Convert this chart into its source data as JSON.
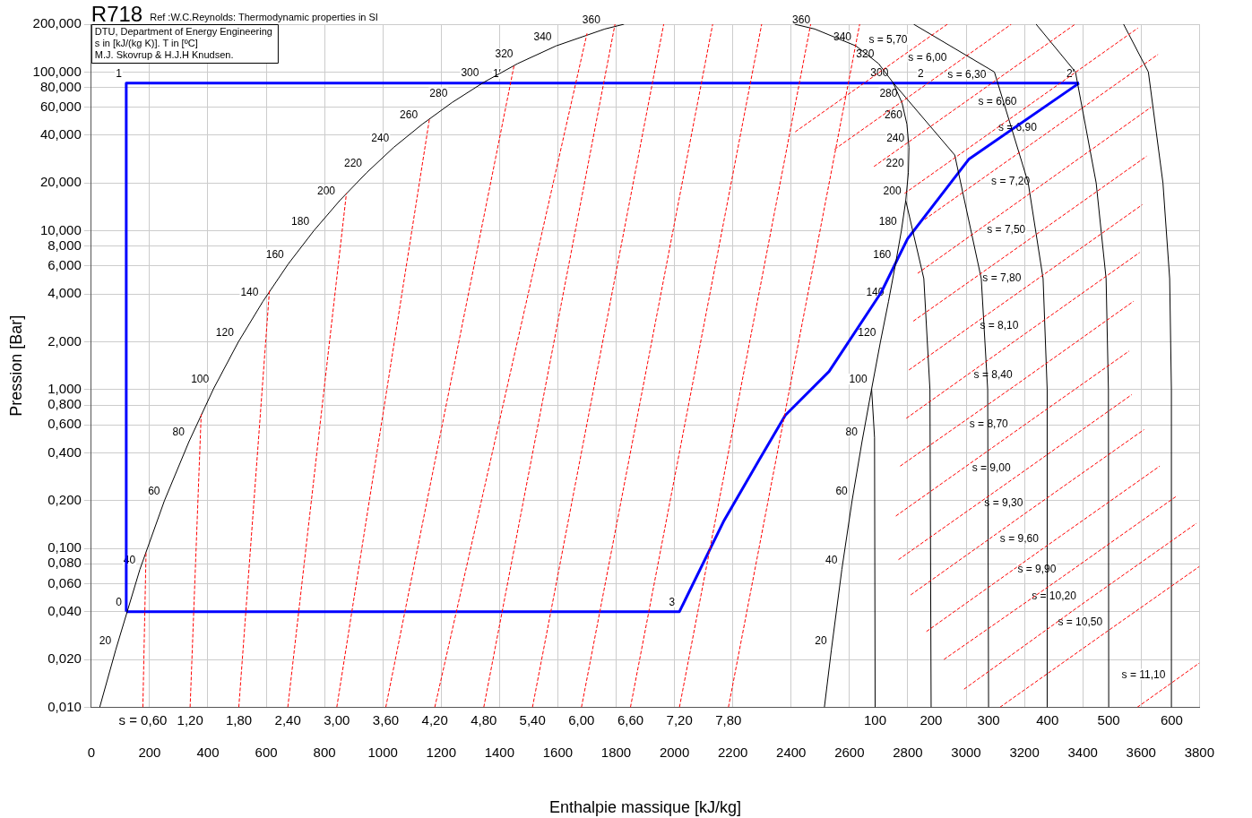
{
  "chart_data": {
    "type": "line",
    "title": "R718",
    "subtitle": "Ref :W.C.Reynolds: Thermodynamic properties in SI",
    "xlabel": "Enthalpie massique [kJ/kg]",
    "ylabel": "Pression [Bar]",
    "xlim": [
      0,
      3800
    ],
    "xticks": [
      0,
      200,
      400,
      600,
      800,
      1000,
      1200,
      1400,
      1600,
      1800,
      2000,
      2200,
      2400,
      2600,
      2800,
      3000,
      3200,
      3400,
      3600,
      3800
    ],
    "ylim": [
      0.01,
      200
    ],
    "log": true,
    "yticks": [
      {
        "value": 0.01,
        "label": "0,010"
      },
      {
        "value": 0.02,
        "label": "0,020"
      },
      {
        "value": 0.04,
        "label": "0,040"
      },
      {
        "value": 0.06,
        "label": "0,060"
      },
      {
        "value": 0.08,
        "label": "0,080"
      },
      {
        "value": 0.1,
        "label": "0,100"
      },
      {
        "value": 0.2,
        "label": "0,200"
      },
      {
        "value": 0.4,
        "label": "0,400"
      },
      {
        "value": 0.6,
        "label": "0,600"
      },
      {
        "value": 0.8,
        "label": "0,800"
      },
      {
        "value": 1,
        "label": "1,000"
      },
      {
        "value": 2,
        "label": "2,000"
      },
      {
        "value": 4,
        "label": "4,000"
      },
      {
        "value": 6,
        "label": "6,000"
      },
      {
        "value": 8,
        "label": "8,000"
      },
      {
        "value": 10,
        "label": "10,000"
      },
      {
        "value": 20,
        "label": "20,000"
      },
      {
        "value": 40,
        "label": "40,000"
      },
      {
        "value": 60,
        "label": "60,000"
      },
      {
        "value": 80,
        "label": "80,000"
      },
      {
        "value": 100,
        "label": "100,000"
      },
      {
        "value": 200,
        "label": "200,000"
      }
    ],
    "grid": true,
    "legend": false,
    "series": [
      {
        "color": "#ff0000",
        "line_style": "dashed",
        "x": [
          177,
          188
        ],
        "values": [
          0.01,
          0.096
        ]
      },
      {
        "color": "#ff0000",
        "line_style": "dashed",
        "x": [
          339,
          377
        ],
        "values": [
          0.01,
          0.7
        ]
      },
      {
        "color": "#ff0000",
        "line_style": "dashed",
        "x": [
          506,
          611
        ],
        "values": [
          0.01,
          4.2
        ]
      },
      {
        "color": "#ff0000",
        "line_style": "dashed",
        "x": [
          674,
          875
        ],
        "values": [
          0.01,
          17.2
        ]
      },
      {
        "color": "#ff0000",
        "line_style": "dashed",
        "x": [
          842,
          1160
        ],
        "values": [
          0.01,
          51
        ]
      },
      {
        "color": "#ff0000",
        "line_style": "dashed",
        "x": [
          1010,
          1450
        ],
        "values": [
          0.01,
          110
        ]
      },
      {
        "color": "#ff0000",
        "line_style": "dashed",
        "x": [
          1178,
          1700
        ],
        "values": [
          0.01,
          175
        ]
      },
      {
        "color": "#ff0000",
        "line_style": "dashed",
        "x": [
          1346,
          1796
        ],
        "values": [
          0.01,
          200
        ]
      },
      {
        "color": "#ff0000",
        "line_style": "dashed",
        "x": [
          1513,
          1963
        ],
        "values": [
          0.01,
          200
        ]
      },
      {
        "color": "#ff0000",
        "line_style": "dashed",
        "x": [
          1681,
          2131
        ],
        "values": [
          0.01,
          200
        ]
      },
      {
        "color": "#ff0000",
        "line_style": "dashed",
        "x": [
          1849,
          2299
        ],
        "values": [
          0.01,
          200
        ]
      },
      {
        "color": "#ff0000",
        "line_style": "dashed",
        "x": [
          2017,
          2467
        ],
        "values": [
          0.01,
          200
        ]
      },
      {
        "color": "#ff0000",
        "line_style": "dashed",
        "x": [
          2185,
          2635
        ],
        "values": [
          0.01,
          200
        ]
      },
      {
        "color": "#ff0000",
        "line_style": "dashed",
        "x": [
          2414,
          2814,
          2936
        ],
        "values": [
          42,
          139,
          200
        ]
      },
      {
        "color": "#ff0000",
        "line_style": "dashed",
        "x": [
          2549,
          2949,
          3155
        ],
        "values": [
          32.6,
          108,
          200
        ]
      },
      {
        "color": "#ff0000",
        "line_style": "dashed",
        "x": [
          2684,
          3084,
          3374
        ],
        "values": [
          25.4,
          84,
          200
        ]
      },
      {
        "color": "#ff0000",
        "line_style": "dashed",
        "x": [
          2789,
          3189,
          3589
        ],
        "values": [
          17.2,
          57,
          189
        ]
      },
      {
        "color": "#ff0000",
        "line_style": "dashed",
        "x": [
          2858,
          3258,
          3658
        ],
        "values": [
          11.8,
          39,
          129
        ]
      },
      {
        "color": "#ff0000",
        "line_style": "dashed",
        "x": [
          2834,
          3234,
          3634
        ],
        "values": [
          5.4,
          18,
          60
        ]
      },
      {
        "color": "#ff0000",
        "line_style": "dashed",
        "x": [
          2819,
          3219,
          3619
        ],
        "values": [
          2.7,
          8.9,
          29.5
        ]
      },
      {
        "color": "#ff0000",
        "line_style": "dashed",
        "x": [
          2804,
          3204,
          3604
        ],
        "values": [
          1.33,
          4.4,
          14.6
        ]
      },
      {
        "color": "#ff0000",
        "line_style": "dashed",
        "x": [
          2795,
          3195,
          3595
        ],
        "values": [
          0.66,
          2.2,
          7.3
        ]
      },
      {
        "color": "#ff0000",
        "line_style": "dashed",
        "x": [
          2774,
          3174,
          3574
        ],
        "values": [
          0.33,
          1.08,
          3.6
        ]
      },
      {
        "color": "#ff0000",
        "line_style": "dashed",
        "x": [
          2759,
          3159,
          3559
        ],
        "values": [
          0.16,
          0.53,
          1.75
        ]
      },
      {
        "color": "#ff0000",
        "line_style": "dashed",
        "x": [
          2768,
          3168,
          3568
        ],
        "values": [
          0.085,
          0.28,
          0.93
        ]
      },
      {
        "color": "#ff0000",
        "line_style": "dashed",
        "x": [
          2810,
          3210,
          3610
        ],
        "values": [
          0.051,
          0.17,
          0.56
        ]
      },
      {
        "color": "#ff0000",
        "line_style": "dashed",
        "x": [
          2864,
          3264,
          3664
        ],
        "values": [
          0.03,
          0.1,
          0.33
        ]
      },
      {
        "color": "#ff0000",
        "line_style": "dashed",
        "x": [
          2924,
          3324,
          3724
        ],
        "values": [
          0.02,
          0.065,
          0.215
        ]
      },
      {
        "color": "#ff0000",
        "line_style": "dashed",
        "x": [
          2993,
          3393,
          3790
        ],
        "values": [
          0.013,
          0.044,
          0.144
        ]
      },
      {
        "color": "#ff0000",
        "line_style": "dashed",
        "x": [
          3116,
          3483,
          3800
        ],
        "values": [
          0.01,
          0.03,
          0.077
        ]
      },
      {
        "color": "#ff0000",
        "line_style": "dashed",
        "x": [
          3587,
          3699,
          3800
        ],
        "values": [
          0.01,
          0.014,
          0.019
        ]
      },
      {
        "color": "#000000",
        "x": [
          29,
          84,
          167,
          251,
          335,
          419,
          504,
          589,
          676,
          763,
          852,
          944,
          1037,
          1135,
          1237,
          1345,
          1462,
          1594,
          1761,
          1827
        ],
        "values": [
          0.01,
          0.023,
          0.074,
          0.2,
          0.47,
          1.01,
          1.99,
          3.6,
          6.2,
          10,
          15.5,
          23.2,
          33.5,
          46.9,
          64.2,
          85.9,
          112.9,
          146,
          186.5,
          200
        ]
      },
      {
        "color": "#000000",
        "x": [
          2514,
          2538,
          2574,
          2609,
          2643,
          2676,
          2706,
          2734,
          2758,
          2778,
          2793,
          2802,
          2804,
          2797,
          2780,
          2749,
          2700,
          2622,
          2481,
          2412
        ],
        "values": [
          0.01,
          0.023,
          0.074,
          0.2,
          0.47,
          1.01,
          1.99,
          3.6,
          6.2,
          10,
          15.5,
          23.2,
          33.5,
          46.9,
          64.2,
          85.9,
          112.9,
          146,
          186.5,
          200
        ]
      },
      {
        "color": "#000000",
        "x": [
          2688,
          2686,
          2676
        ],
        "values": [
          0.01,
          0.5,
          1.01
        ]
      },
      {
        "color": "#000000",
        "x": [
          2880,
          2876,
          2855,
          2793
        ],
        "values": [
          0.01,
          1,
          5,
          15.5
        ]
      },
      {
        "color": "#000000",
        "x": [
          3077,
          3074,
          3052,
          2961,
          2749
        ],
        "values": [
          0.01,
          1,
          5,
          30,
          85.9
        ]
      },
      {
        "color": "#000000",
        "x": [
          3279,
          3278,
          3264,
          3213,
          3097,
          2820
        ],
        "values": [
          0.01,
          1,
          5,
          20,
          100,
          200
        ]
      },
      {
        "color": "#000000",
        "x": [
          3489,
          3488,
          3480,
          3446,
          3375,
          3240
        ],
        "values": [
          0.01,
          1,
          5,
          20,
          100,
          200
        ]
      },
      {
        "color": "#000000",
        "x": [
          3705,
          3704,
          3698,
          3675,
          3625,
          3540
        ],
        "values": [
          0.01,
          1,
          5,
          20,
          100,
          200
        ]
      },
      {
        "color": "#0000ff",
        "x": [
          120,
          120,
          3387
        ],
        "values": [
          0.04,
          85,
          85
        ]
      },
      {
        "color": "#0000ff",
        "x": [
          3387,
          3009,
          2799,
          2709,
          2530,
          2380,
          2290,
          2170,
          2017,
          120
        ],
        "values": [
          85,
          28.2,
          8.9,
          4.1,
          1.3,
          0.69,
          0.36,
          0.15,
          0.04,
          0.04
        ]
      }
    ],
    "annotations": [
      "DTU, Department of Energy Engineering",
      "s in [kJ/(kg K)]. T in [ºC]",
      "M.J. Skovrup & H.J.H Knudsen.",
      {
        "text": "1",
        "x": 120,
        "y": 85
      },
      {
        "text": "1′",
        "x": 1420,
        "y": 85
      },
      {
        "text": "2",
        "x": 2870,
        "y": 85
      },
      {
        "text": "2′",
        "x": 3387,
        "y": 85
      },
      {
        "text": "0",
        "x": 120,
        "y": 0.04
      },
      {
        "text": "3",
        "x": 2017,
        "y": 0.04
      },
      {
        "text": "20",
        "x": 84,
        "y": 0.023
      },
      {
        "text": "40",
        "x": 167,
        "y": 0.074
      },
      {
        "text": "60",
        "x": 251,
        "y": 0.2
      },
      {
        "text": "80",
        "x": 335,
        "y": 0.47
      },
      {
        "text": "100",
        "x": 419,
        "y": 1.01
      },
      {
        "text": "120",
        "x": 504,
        "y": 1.99
      },
      {
        "text": "140",
        "x": 589,
        "y": 3.6
      },
      {
        "text": "160",
        "x": 676,
        "y": 6.2
      },
      {
        "text": "180",
        "x": 763,
        "y": 10
      },
      {
        "text": "200",
        "x": 852,
        "y": 15.5
      },
      {
        "text": "220",
        "x": 944,
        "y": 23.2
      },
      {
        "text": "240",
        "x": 1037,
        "y": 33.5
      },
      {
        "text": "260",
        "x": 1135,
        "y": 46.9
      },
      {
        "text": "280",
        "x": 1237,
        "y": 64.2
      },
      {
        "text": "300",
        "x": 1345,
        "y": 85.9
      },
      {
        "text": "320",
        "x": 1462,
        "y": 112.9
      },
      {
        "text": "340",
        "x": 1594,
        "y": 146
      },
      {
        "text": "360",
        "x": 1761,
        "y": 186.5
      },
      {
        "text": "20",
        "x": 2538,
        "y": 0.023
      },
      {
        "text": "40",
        "x": 2574,
        "y": 0.074
      },
      {
        "text": "60",
        "x": 2609,
        "y": 0.2
      },
      {
        "text": "80",
        "x": 2643,
        "y": 0.47
      },
      {
        "text": "100",
        "x": 2676,
        "y": 1.01
      },
      {
        "text": "120",
        "x": 2706,
        "y": 1.99
      },
      {
        "text": "140",
        "x": 2734,
        "y": 3.6
      },
      {
        "text": "160",
        "x": 2758,
        "y": 6.2
      },
      {
        "text": "180",
        "x": 2778,
        "y": 10
      },
      {
        "text": "200",
        "x": 2793,
        "y": 15.5
      },
      {
        "text": "220",
        "x": 2802,
        "y": 23.2
      },
      {
        "text": "240",
        "x": 2804,
        "y": 33.5
      },
      {
        "text": "260",
        "x": 2797,
        "y": 46.9
      },
      {
        "text": "280",
        "x": 2780,
        "y": 64.2
      },
      {
        "text": "300",
        "x": 2749,
        "y": 85.9
      },
      {
        "text": "320",
        "x": 2700,
        "y": 112.9
      },
      {
        "text": "340",
        "x": 2622,
        "y": 146
      },
      {
        "text": "360",
        "x": 2481,
        "y": 186.5
      },
      {
        "text": "s = 5,70",
        "x": 2814,
        "y": 139
      },
      {
        "text": "s = 6,00",
        "x": 2949,
        "y": 108
      },
      {
        "text": "s = 6,30",
        "x": 3084,
        "y": 84
      },
      {
        "text": "s = 6,60",
        "x": 3189,
        "y": 57
      },
      {
        "text": "s = 6,90",
        "x": 3258,
        "y": 39
      },
      {
        "text": "s = 7,20",
        "x": 3234,
        "y": 18
      },
      {
        "text": "s = 7,50",
        "x": 3219,
        "y": 8.9
      },
      {
        "text": "s = 7,80",
        "x": 3204,
        "y": 4.4
      },
      {
        "text": "s = 8,10",
        "x": 3195,
        "y": 2.2
      },
      {
        "text": "s = 8,40",
        "x": 3174,
        "y": 1.08
      },
      {
        "text": "s = 8,70",
        "x": 3159,
        "y": 0.53
      },
      {
        "text": "s = 9,00",
        "x": 3168,
        "y": 0.28
      },
      {
        "text": "s = 9,30",
        "x": 3210,
        "y": 0.17
      },
      {
        "text": "s = 9,60",
        "x": 3264,
        "y": 0.1
      },
      {
        "text": "s = 9,90",
        "x": 3324,
        "y": 0.065
      },
      {
        "text": "s = 10,20",
        "x": 3393,
        "y": 0.044
      },
      {
        "text": "s = 10,50",
        "x": 3483,
        "y": 0.03
      },
      {
        "text": "s = 11,10",
        "x": 3699,
        "y": 0.014
      },
      {
        "text": "100",
        "x": 2688,
        "y": 0.01
      },
      {
        "text": "200",
        "x": 2880,
        "y": 0.01
      },
      {
        "text": "300",
        "x": 3077,
        "y": 0.01
      },
      {
        "text": "400",
        "x": 3279,
        "y": 0.01
      },
      {
        "text": "500",
        "x": 3489,
        "y": 0.01
      },
      {
        "text": "600",
        "x": 3705,
        "y": 0.01
      },
      {
        "text": "s = 0,60",
        "x": 177,
        "y": 0.01
      },
      {
        "text": "1,20",
        "x": 339,
        "y": 0.01
      },
      {
        "text": "1,80",
        "x": 506,
        "y": 0.01
      },
      {
        "text": "2,40",
        "x": 674,
        "y": 0.01
      },
      {
        "text": "3,00",
        "x": 842,
        "y": 0.01
      },
      {
        "text": "3,60",
        "x": 1010,
        "y": 0.01
      },
      {
        "text": "4,20",
        "x": 1178,
        "y": 0.01
      },
      {
        "text": "4,80",
        "x": 1346,
        "y": 0.01
      },
      {
        "text": "5,40",
        "x": 1513,
        "y": 0.01
      },
      {
        "text": "6,00",
        "x": 1681,
        "y": 0.01
      },
      {
        "text": "6,60",
        "x": 1849,
        "y": 0.01
      },
      {
        "text": "7,20",
        "x": 2017,
        "y": 0.01
      },
      {
        "text": "7,80",
        "x": 2185,
        "y": 0.01
      }
    ]
  }
}
